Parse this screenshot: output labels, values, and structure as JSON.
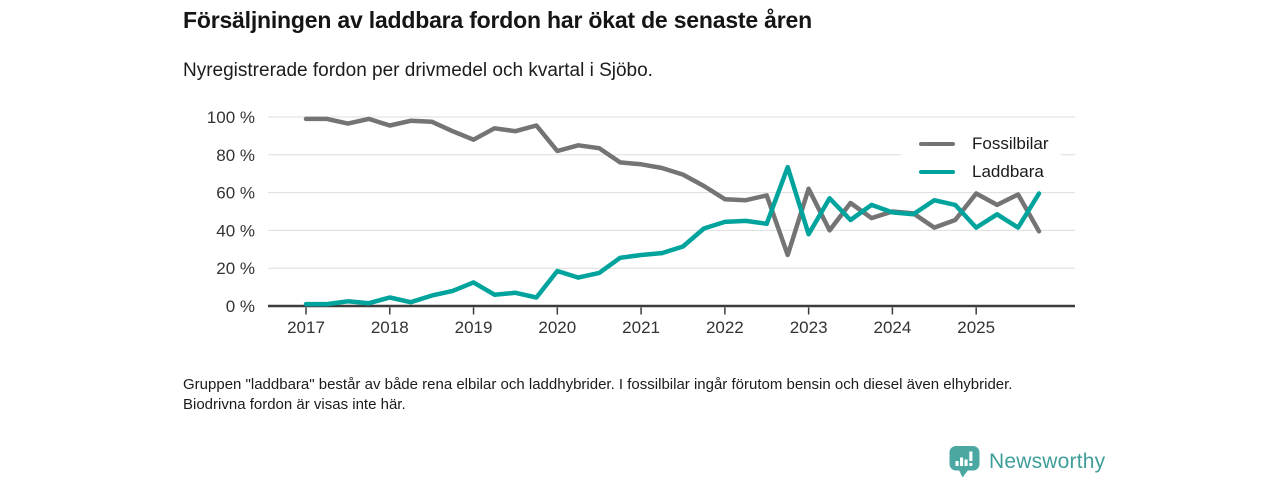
{
  "header": {
    "title": "Försäljningen av laddbara fordon har ökat de senaste åren",
    "subtitle": "Nyregistrerade fordon per drivmedel och kvartal i Sjöbo."
  },
  "chart_data": {
    "type": "line",
    "title": "Försäljningen av laddbara fordon har ökat de senaste åren",
    "subtitle": "Nyregistrerade fordon per drivmedel och kvartal i Sjöbo.",
    "unit": "%",
    "x": [
      "2017 Q1",
      "2017 Q2",
      "2017 Q3",
      "2017 Q4",
      "2018 Q1",
      "2018 Q2",
      "2018 Q3",
      "2018 Q4",
      "2019 Q1",
      "2019 Q2",
      "2019 Q3",
      "2019 Q4",
      "2020 Q1",
      "2020 Q2",
      "2020 Q3",
      "2020 Q4",
      "2021 Q1",
      "2021 Q2",
      "2021 Q3",
      "2021 Q4",
      "2022 Q1",
      "2022 Q2",
      "2022 Q3",
      "2022 Q4",
      "2023 Q1",
      "2023 Q2",
      "2023 Q3",
      "2023 Q4",
      "2024 Q1",
      "2024 Q2",
      "2024 Q3",
      "2024 Q4",
      "2025 Q1",
      "2025 Q2",
      "2025 Q3",
      "2025 Q4"
    ],
    "series": [
      {
        "name": "Fossilbilar",
        "color": "#747474",
        "values": [
          99,
          99,
          96.5,
          99,
          95.5,
          98,
          97.5,
          92.5,
          88,
          94,
          92.5,
          95.5,
          82,
          85,
          83.5,
          76,
          75,
          73,
          69.5,
          63.5,
          56.5,
          56,
          58.5,
          27,
          62,
          40,
          54.5,
          46.5,
          50,
          49,
          41.5,
          45.5,
          59.5,
          53.5,
          59,
          39.5
        ]
      },
      {
        "name": "Laddbara",
        "color": "#00a49c",
        "values": [
          1,
          1,
          2.5,
          1.5,
          4.5,
          2,
          5.5,
          8,
          12.5,
          6,
          7,
          4.5,
          18.5,
          15,
          17.5,
          25.5,
          27,
          28,
          31.5,
          41,
          44.5,
          45,
          43.5,
          73.5,
          38,
          57,
          45.5,
          53.5,
          49.5,
          48.5,
          56,
          53.5,
          41.5,
          48.5,
          41.5,
          59.5
        ]
      }
    ],
    "xticks": [
      "2017",
      "2018",
      "2019",
      "2020",
      "2021",
      "2022",
      "2023",
      "2024",
      "2025"
    ],
    "yticks_labels": [
      "0 %",
      "20 %",
      "40 %",
      "60 %",
      "80 %",
      "100 %"
    ],
    "yticks_values": [
      0,
      20,
      40,
      60,
      80,
      100
    ],
    "ylim": [
      0,
      100
    ],
    "grid": "horizontal",
    "legend_position": "top-right",
    "colors": {
      "grid": "#dedede",
      "axis": "#3c3c3c"
    }
  },
  "footnote": {
    "text": "Gruppen \"laddbara\" består av både rena elbilar och laddhybrider. I fossilbilar ingår förutom bensin och diesel även elhybrider. Biodrivna fordon är visas inte här."
  },
  "branding": {
    "name": "Newsworthy",
    "logo_color": "#4ba7a2",
    "text_color": "#3f9e99"
  }
}
